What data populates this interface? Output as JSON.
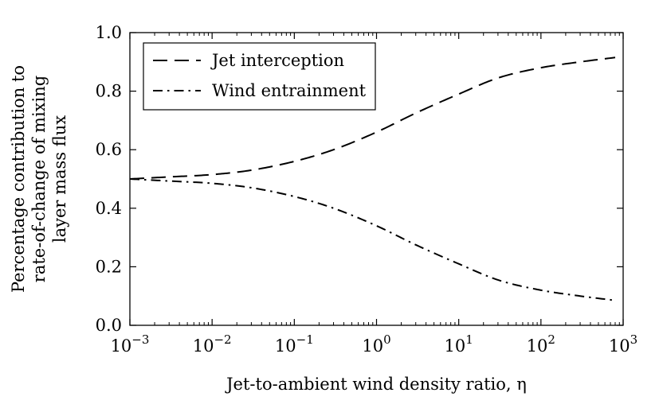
{
  "chart_data": {
    "type": "line",
    "title": "",
    "xlabel": "Jet-to-ambient wind density ratio, η",
    "ylabel_lines": [
      "Percentage contribution to",
      "rate-of-change of mixing",
      "layer mass flux"
    ],
    "xscale": "log",
    "xlim": [
      0.001,
      1000
    ],
    "ylim": [
      0.0,
      1.0
    ],
    "x_ticks": [
      {
        "base": "10",
        "exp": "−3"
      },
      {
        "base": "10",
        "exp": "−2"
      },
      {
        "base": "10",
        "exp": "−1"
      },
      {
        "base": "10",
        "exp": "0"
      },
      {
        "base": "10",
        "exp": "1"
      },
      {
        "base": "10",
        "exp": "2"
      },
      {
        "base": "10",
        "exp": "3"
      }
    ],
    "y_ticks": [
      "0.0",
      "0.2",
      "0.4",
      "0.6",
      "0.8",
      "1.0"
    ],
    "grid": false,
    "legend_position": "top-left",
    "x": [
      0.001,
      0.003,
      0.01,
      0.03,
      0.1,
      0.3,
      1,
      3,
      10,
      30,
      100,
      300,
      800
    ],
    "series": [
      {
        "name": "Jet interception",
        "style": "dashed",
        "values": [
          0.5,
          0.507,
          0.515,
          0.53,
          0.56,
          0.6,
          0.66,
          0.725,
          0.79,
          0.845,
          0.88,
          0.9,
          0.915
        ]
      },
      {
        "name": "Wind entrainment",
        "style": "dash-dot",
        "values": [
          0.5,
          0.493,
          0.485,
          0.47,
          0.44,
          0.4,
          0.34,
          0.275,
          0.21,
          0.155,
          0.12,
          0.1,
          0.085
        ]
      }
    ]
  }
}
